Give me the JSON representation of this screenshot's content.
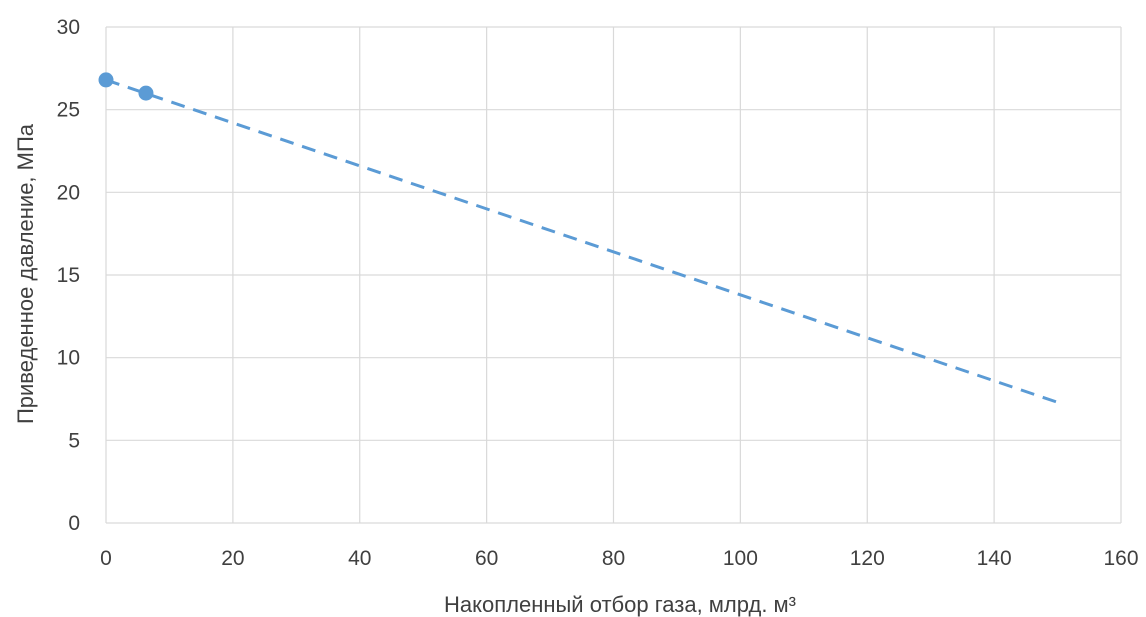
{
  "chart_data": {
    "type": "scatter",
    "title": "",
    "xlabel": "Накопленный отбор газа, млрд. м³",
    "ylabel": "Приведенное давление, МПа",
    "xlim": [
      0,
      160
    ],
    "ylim": [
      0,
      30
    ],
    "x_ticks": [
      0,
      20,
      40,
      60,
      80,
      100,
      120,
      140,
      160
    ],
    "y_ticks": [
      0,
      5,
      10,
      15,
      20,
      25,
      30
    ],
    "x_tick_labels": [
      "0",
      "20",
      "40",
      "60",
      "80",
      "100",
      "120",
      "140",
      "160"
    ],
    "y_tick_labels": [
      "0",
      "5",
      "10",
      "15",
      "20",
      "25",
      "30"
    ],
    "grid": true,
    "legend": "none",
    "series": [
      {
        "kind": "scatter",
        "x": [
          0,
          6.3
        ],
        "y": [
          26.8,
          26.0
        ]
      }
    ],
    "trendline": {
      "kind": "linear",
      "style": "dashed",
      "x": [
        0,
        150
      ],
      "y": [
        26.8,
        7.3
      ]
    },
    "colors": {
      "marker": "#5b9bd5",
      "trendline": "#5b9bd5",
      "grid": "#d9d9d9",
      "text": "#404040"
    }
  }
}
